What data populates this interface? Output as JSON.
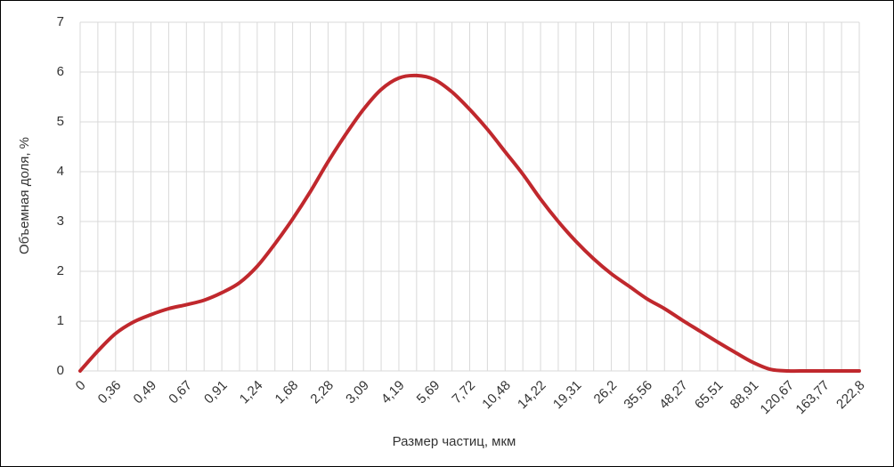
{
  "chart_data": {
    "type": "line",
    "x_label": "Размер частиц, мкм",
    "y_label": "Объемная доля, %",
    "categories": [
      "0",
      null,
      "0,36",
      null,
      "0,49",
      null,
      "0,67",
      null,
      "0,91",
      null,
      "1,24",
      null,
      "1,68",
      null,
      "2,28",
      null,
      "3,09",
      null,
      "4,19",
      null,
      "5,69",
      null,
      "7,72",
      null,
      "10,48",
      null,
      "14,22",
      null,
      "19,31",
      null,
      "26,2",
      null,
      "35,56",
      null,
      "48,27",
      null,
      "65,51",
      null,
      "88,91",
      null,
      "120,67",
      null,
      "163,77",
      null,
      "222,8"
    ],
    "series": [
      {
        "name": "Объемная доля",
        "color": "#c0282d",
        "values": [
          0,
          0.4,
          0.75,
          0.98,
          1.13,
          1.25,
          1.33,
          1.42,
          1.57,
          1.77,
          2.1,
          2.55,
          3.05,
          3.6,
          4.2,
          4.75,
          5.25,
          5.65,
          5.88,
          5.93,
          5.85,
          5.6,
          5.25,
          4.85,
          4.4,
          3.95,
          3.45,
          3.0,
          2.6,
          2.25,
          1.95,
          1.7,
          1.45,
          1.25,
          1.02,
          0.8,
          0.58,
          0.37,
          0.17,
          0.03,
          0,
          0,
          0,
          0,
          0
        ]
      }
    ],
    "ylim": [
      0,
      7
    ],
    "yticks": [
      0,
      1,
      2,
      3,
      4,
      5,
      6,
      7
    ],
    "grid": true
  }
}
